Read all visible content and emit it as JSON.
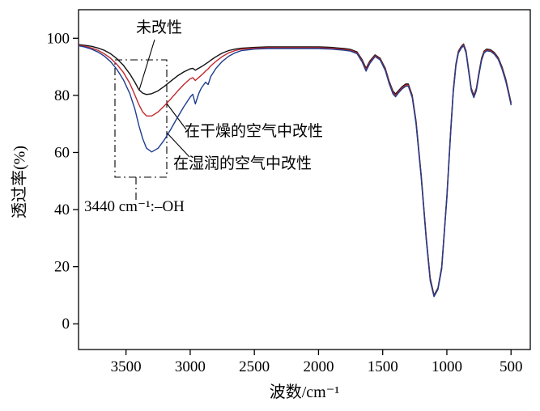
{
  "figure": {
    "background": "#ffffff",
    "frame_color": "#000000"
  },
  "axes": {
    "x_title": "波数/cm⁻¹",
    "y_title": "透过率(%)",
    "x_ticks": [
      3500,
      3000,
      2500,
      2000,
      1500,
      1000,
      500
    ],
    "y_ticks": [
      0,
      20,
      40,
      60,
      80,
      100
    ]
  },
  "annotations": {
    "unmodified_label": "未改性",
    "dry_air_label": "在干燥的空气中改性",
    "humid_air_label": "在湿润的空气中改性",
    "peak_label": "3440 cm⁻¹:–OH"
  },
  "chart_data": {
    "type": "line",
    "title": "",
    "xlabel": "波数/cm⁻¹",
    "ylabel": "透过率(%)",
    "x_axis_reversed": true,
    "xlim": [
      3870,
      350
    ],
    "ylim": [
      -9,
      110
    ],
    "y_tick_range": [
      0,
      100
    ],
    "grid": false,
    "legend_position": "inline-annotations",
    "annotated_peak": {
      "wavenumber_cm1": 3440,
      "assignment": "-OH"
    },
    "x": [
      3870,
      3820,
      3770,
      3720,
      3670,
      3620,
      3570,
      3520,
      3470,
      3430,
      3400,
      3370,
      3340,
      3300,
      3250,
      3200,
      3150,
      3100,
      3050,
      3000,
      2980,
      2960,
      2945,
      2930,
      2915,
      2900,
      2880,
      2860,
      2840,
      2800,
      2750,
      2700,
      2650,
      2600,
      2500,
      2400,
      2300,
      2200,
      2100,
      2000,
      1950,
      1900,
      1850,
      1800,
      1750,
      1700,
      1660,
      1630,
      1600,
      1560,
      1520,
      1480,
      1450,
      1420,
      1400,
      1380,
      1350,
      1320,
      1300,
      1270,
      1240,
      1200,
      1160,
      1130,
      1100,
      1070,
      1040,
      1000,
      970,
      950,
      930,
      910,
      890,
      870,
      850,
      830,
      810,
      790,
      770,
      750,
      730,
      710,
      690,
      660,
      630,
      600,
      570,
      540,
      520,
      500
    ],
    "series": [
      {
        "name": "未改性",
        "color": "#111111",
        "oh_band_min_transmittance": 80,
        "values": [
          97.8,
          97.5,
          97.2,
          96.6,
          95.8,
          94.6,
          92.8,
          90.5,
          87.5,
          84.5,
          82,
          80.8,
          80.3,
          80.6,
          81.6,
          83.2,
          85,
          86.8,
          88.2,
          89.3,
          89.5,
          88.8,
          89.2,
          89.6,
          90,
          90.4,
          91,
          91.6,
          92.3,
          93.5,
          94.8,
          95.7,
          96.2,
          96.5,
          96.8,
          97,
          97,
          97,
          97,
          97,
          96.9,
          96.8,
          96.6,
          96.4,
          96.1,
          95.2,
          92.5,
          89.5,
          92,
          94.2,
          93,
          89.5,
          85,
          81.5,
          80.5,
          81.5,
          83,
          84,
          84,
          80,
          71,
          52,
          30,
          16,
          10,
          12.5,
          20,
          45,
          68,
          82,
          91,
          95.5,
          97,
          98,
          95.5,
          89,
          82.5,
          80,
          82.5,
          88,
          93,
          95.5,
          96.2,
          96,
          95,
          93.2,
          90,
          85.5,
          81.5,
          77.5
        ]
      },
      {
        "name": "在干燥的空气中改性",
        "color": "#c1272d",
        "oh_band_min_transmittance": 72.8,
        "values": [
          97.6,
          97.2,
          96.6,
          95.8,
          94.6,
          93,
          90.8,
          88,
          84.2,
          80,
          76.8,
          74.2,
          72.8,
          72.8,
          74.2,
          76.4,
          78.8,
          81.4,
          83.8,
          85.8,
          86.2,
          85.2,
          85.8,
          86.4,
          87,
          87.6,
          88.5,
          89.3,
          90.3,
          91.9,
          93.6,
          94.9,
          95.7,
          96.2,
          96.5,
          96.7,
          96.7,
          96.7,
          96.7,
          96.7,
          96.6,
          96.5,
          96.3,
          96.1,
          95.8,
          94.9,
          92.1,
          89,
          91.6,
          93.9,
          92.7,
          89.1,
          84.6,
          81,
          80,
          81.1,
          82.6,
          83.6,
          83.6,
          79.6,
          70.5,
          51.5,
          29.5,
          15.5,
          9.7,
          12.2,
          19.6,
          44.5,
          67.5,
          81.5,
          90.6,
          95.2,
          96.7,
          97.7,
          95.2,
          88.6,
          82.1,
          79.6,
          82.1,
          87.6,
          92.6,
          95.2,
          95.9,
          95.7,
          94.7,
          92.9,
          89.6,
          85.1,
          81.1,
          77.1
        ]
      },
      {
        "name": "在湿润的空气中改性",
        "color": "#1f3d8f",
        "oh_band_min_transmittance": 60.2,
        "values": [
          97.4,
          96.9,
          96.2,
          95.2,
          93.8,
          91.8,
          89,
          85.4,
          80.6,
          75,
          69.5,
          64.8,
          61.5,
          60.2,
          61.5,
          64.5,
          68.2,
          72.2,
          76,
          79.4,
          80.4,
          77,
          79,
          81,
          82.4,
          83.4,
          84.6,
          83.8,
          86.6,
          89.4,
          91.9,
          93.7,
          94.9,
          95.7,
          96.2,
          96.4,
          96.4,
          96.4,
          96.4,
          96.4,
          96.3,
          96.2,
          96,
          95.8,
          95.5,
          94.6,
          91.7,
          88.5,
          91.2,
          93.6,
          92.4,
          88.7,
          84.2,
          80.5,
          79.5,
          80.7,
          82.2,
          83.2,
          83.2,
          79.2,
          70,
          51,
          29,
          15,
          9.5,
          12,
          19.2,
          44,
          67,
          81,
          90.2,
          94.8,
          96.4,
          97.4,
          94.8,
          88.2,
          81.7,
          79.2,
          81.7,
          87.2,
          92.2,
          94.8,
          95.6,
          95.4,
          94.4,
          92.6,
          89.2,
          84.7,
          80.7,
          76.7
        ]
      }
    ]
  }
}
